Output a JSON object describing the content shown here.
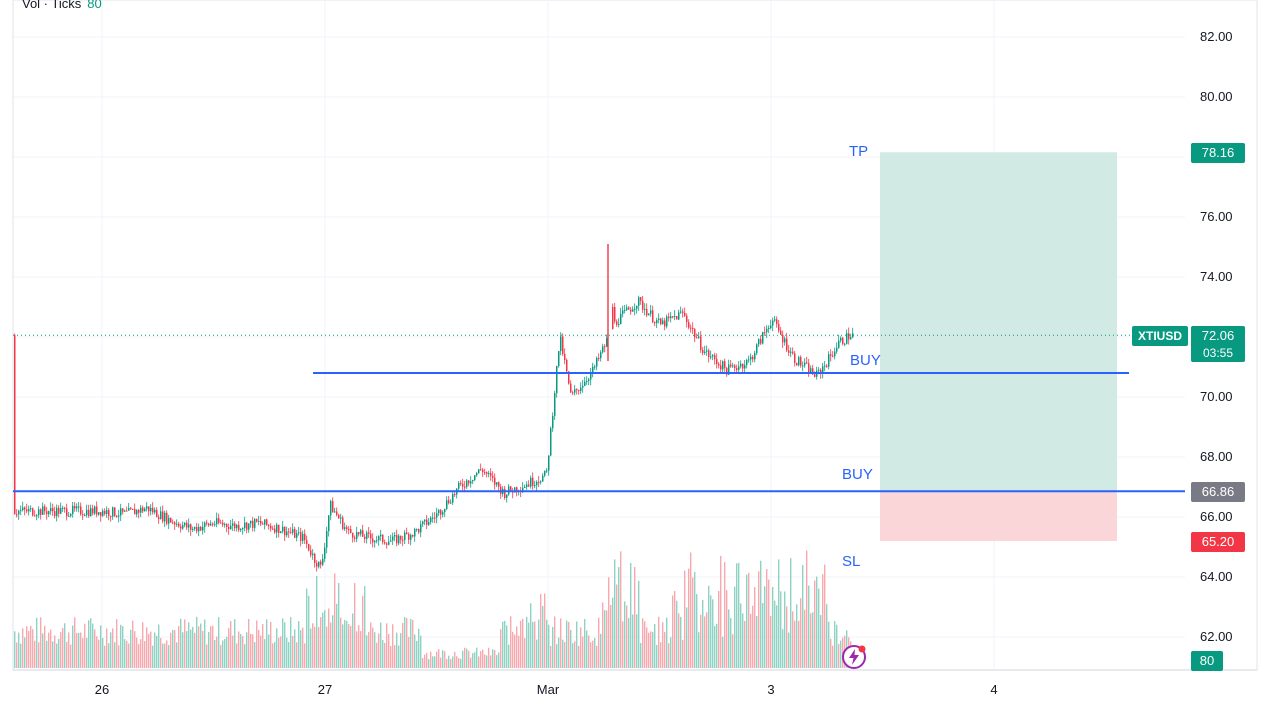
{
  "volume_label": {
    "text": "Vol · Ticks",
    "value": "80"
  },
  "symbol": "XTIUSD",
  "last_price": "72.06",
  "countdown": "03:55",
  "price_tags": {
    "tp": "78.16",
    "entry": "66.86",
    "sl": "65.20",
    "volume": "80"
  },
  "drawing_labels": {
    "tp": "TP",
    "buy_upper": "BUY",
    "buy_lower": "BUY",
    "sl": "SL"
  },
  "colors": {
    "up": "#089981",
    "down": "#f23645",
    "line": "#2962ff",
    "profit_zone": "#cfeae3",
    "loss_zone": "#fbd4d7",
    "entry_tag": "#787b86"
  },
  "chart_data": {
    "type": "candlestick",
    "symbol": "XTIUSD",
    "ylim": [
      61,
      83
    ],
    "y_ticks": [
      "82.00",
      "80.00",
      "78.00",
      "76.00",
      "74.00",
      "72.00",
      "70.00",
      "68.00",
      "66.00",
      "64.00",
      "62.00"
    ],
    "x_ticks": [
      {
        "label": "26",
        "x": 0
      },
      {
        "label": "27",
        "x": 1
      },
      {
        "label": "Mar",
        "x": 2
      },
      {
        "label": "3",
        "x": 3
      },
      {
        "label": "4",
        "x": 4
      }
    ],
    "series": [
      {
        "name": "price",
        "x": [
          0,
          0.1,
          0.2,
          0.3,
          0.4,
          0.5,
          0.6,
          0.7,
          0.8,
          0.9,
          0.95,
          0.98,
          1.02,
          1.1,
          1.2,
          1.3,
          1.4,
          1.5,
          1.6,
          1.7,
          1.8,
          1.9,
          1.99,
          2.05,
          2.1,
          2.2,
          2.3,
          2.4,
          2.5,
          2.6,
          2.7,
          2.8,
          2.9,
          3.0,
          3.1,
          3.2,
          3.25,
          3.3,
          3.35
        ],
        "values": [
          66.2,
          66.1,
          66.3,
          65.9,
          65.6,
          65.8,
          65.7,
          65.8,
          65.6,
          65.3,
          64.6,
          64.3,
          66.4,
          65.5,
          65.3,
          65.2,
          65.5,
          66.1,
          67.0,
          67.6,
          66.8,
          67.1,
          67.4,
          72.0,
          70.0,
          70.9,
          72.5,
          73.2,
          72.4,
          72.8,
          71.5,
          70.9,
          71.2,
          72.6,
          71.3,
          70.7,
          71.2,
          71.8,
          72.06
        ]
      },
      {
        "name": "Vol · Ticks",
        "last": 80
      }
    ],
    "levels": {
      "tp": 78.16,
      "entry": 66.86,
      "sl": 65.2,
      "buy_line_upper": 70.8
    },
    "grid": true
  }
}
